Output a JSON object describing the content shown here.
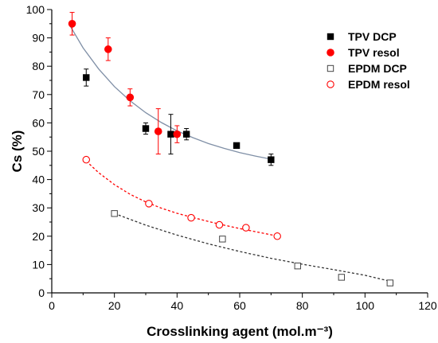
{
  "chart_data": {
    "type": "scatter",
    "xlabel": "Crosslinking agent (mol.m⁻³)",
    "ylabel": "Cs (%)",
    "xlim": [
      0,
      120
    ],
    "ylim": [
      0,
      100
    ],
    "xticks": [
      0,
      20,
      40,
      60,
      80,
      100,
      120
    ],
    "yticks": [
      0,
      10,
      20,
      30,
      40,
      50,
      60,
      70,
      80,
      90,
      100
    ],
    "grid": false,
    "legend_position": "top-right",
    "series": [
      {
        "name": "TPV DCP",
        "marker": "filled-square",
        "color": "#000000",
        "x": [
          11,
          30,
          38,
          43,
          59,
          70
        ],
        "y": [
          76,
          58,
          56,
          56,
          52,
          47
        ],
        "err": [
          3,
          2,
          7,
          2,
          0,
          2
        ]
      },
      {
        "name": "TPV resol",
        "marker": "filled-circle",
        "color": "#ff0000",
        "x": [
          6.5,
          18,
          25,
          34,
          40
        ],
        "y": [
          95,
          86,
          69,
          57,
          56
        ],
        "err": [
          4,
          4,
          3,
          8,
          3
        ]
      },
      {
        "name": "EPDM DCP",
        "marker": "open-square",
        "color": "#444444",
        "x": [
          20,
          54.5,
          78.5,
          92.5,
          108
        ],
        "y": [
          28,
          19,
          9.5,
          5.5,
          3.5
        ],
        "err": []
      },
      {
        "name": "EPDM resol",
        "marker": "open-circle",
        "color": "#ff0000",
        "x": [
          11,
          31,
          44.5,
          53.5,
          62,
          72
        ],
        "y": [
          47,
          31.5,
          26.5,
          24,
          23,
          20
        ],
        "err": []
      }
    ],
    "fits": [
      {
        "for": "TPV",
        "style": "solid",
        "color": "#7f8fa6",
        "x": [
          6,
          10,
          15,
          20,
          25,
          30,
          35,
          40,
          45,
          50,
          55,
          60,
          65,
          70
        ],
        "y": [
          94,
          86.5,
          79,
          72.8,
          67.8,
          63.6,
          60.1,
          57.2,
          54.8,
          52.7,
          51,
          49.5,
          48.3,
          47.2
        ]
      },
      {
        "for": "EPDM resol",
        "style": "dashed",
        "color": "#ff0000",
        "x": [
          11,
          15,
          20,
          25,
          30,
          35,
          40,
          45,
          50,
          55,
          60,
          65,
          70,
          72
        ],
        "y": [
          46.5,
          42.4,
          38.2,
          34.8,
          32.1,
          29.9,
          28.1,
          26.6,
          25.2,
          23.9,
          22.7,
          21.6,
          20.5,
          20.1
        ]
      },
      {
        "for": "EPDM DCP",
        "style": "dashed",
        "color": "#333333",
        "x": [
          20,
          30,
          40,
          50,
          60,
          70,
          80,
          90,
          100,
          108
        ],
        "y": [
          28,
          23.9,
          20.4,
          17.3,
          14.6,
          12.2,
          10.1,
          8.2,
          6.2,
          4.1
        ]
      }
    ]
  }
}
